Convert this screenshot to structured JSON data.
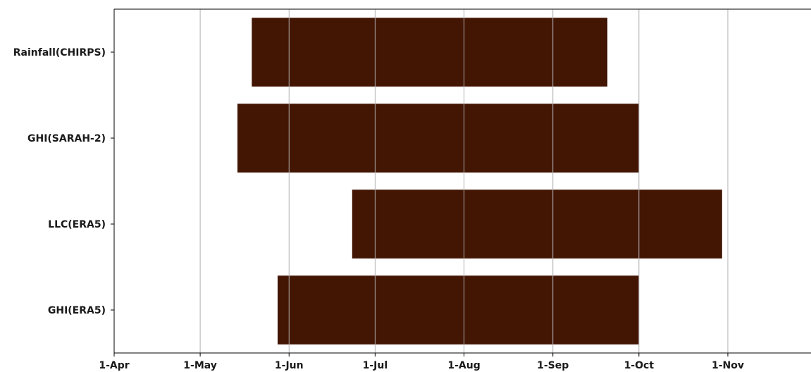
{
  "chart_data": {
    "type": "bar",
    "orientation": "horizontal",
    "categories": [
      "Rainfall(CHIRPS)",
      "GHI(SARAH-2)",
      "LLC(ERA5)",
      "GHI(ERA5)"
    ],
    "series": [
      {
        "start": [
          "05-19",
          "05-14",
          "06-23",
          "05-28"
        ],
        "end": [
          "09-20",
          "10-01",
          "10-30",
          "10-01"
        ]
      }
    ],
    "x_ticks": [
      "1-Apr",
      "1-May",
      "1-Jun",
      "1-Jul",
      "1-Aug",
      "1-Sep",
      "1-Oct",
      "1-Nov"
    ],
    "x_tick_dates": [
      "04-01",
      "05-01",
      "06-01",
      "07-01",
      "08-01",
      "09-01",
      "10-01",
      "11-01"
    ],
    "xlim": [
      "04-01",
      "11-30"
    ],
    "grid": "x",
    "bar_color": "#431503",
    "title": "",
    "xlabel": "",
    "ylabel": ""
  }
}
